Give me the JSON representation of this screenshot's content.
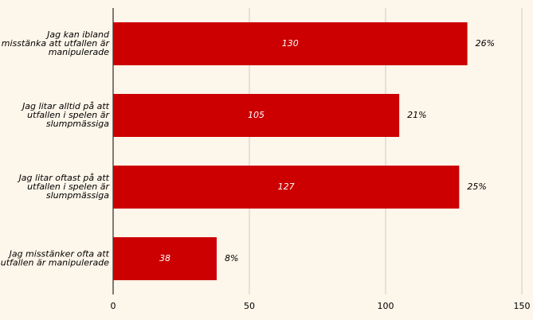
{
  "chart_data": {
    "type": "hbar",
    "categories": [
      [
        "Jag kan ibland",
        "misstänka att utfallen är",
        "manipulerade"
      ],
      [
        "Jag litar alltid på att",
        "utfallen i spelen är",
        "slumpmässiga"
      ],
      [
        "Jag litar oftast på att",
        "utfallen i spelen är",
        "slumpmässiga"
      ],
      [
        "Jag misstänker ofta att",
        "utfallen är manipulerade"
      ]
    ],
    "values": [
      130,
      105,
      127,
      38
    ],
    "percent_labels": [
      "26%",
      "21%",
      "25%",
      "8%"
    ],
    "color": "#cc0000",
    "xlim": [
      0,
      150
    ],
    "xticks": [
      0,
      50,
      100,
      150
    ],
    "grid": true
  }
}
